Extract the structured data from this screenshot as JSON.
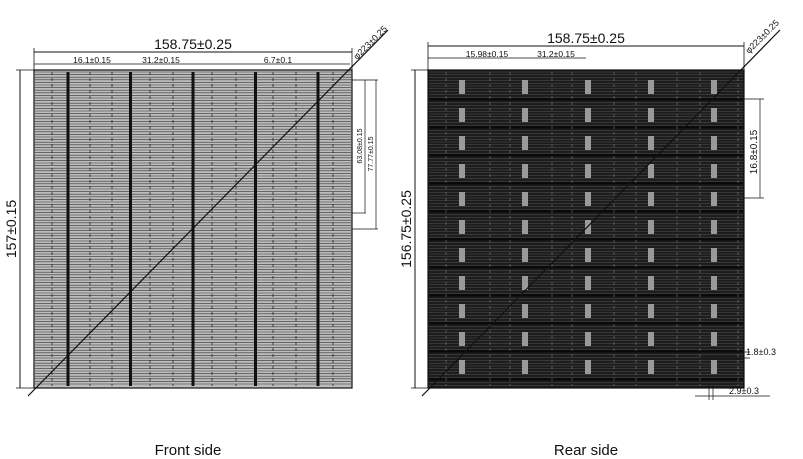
{
  "front": {
    "caption": "Front side",
    "width_dim": "158.75±0.25",
    "height_dim": "157±0.15",
    "diag_dim": "φ223±0.25",
    "seg_a": "16.1±0.15",
    "seg_b": "31.2±0.15",
    "seg_c": "6.7±0.1",
    "side_a": "63.08±0.15",
    "side_b": "77.77±0.15",
    "busbar_count": 5
  },
  "rear": {
    "caption": "Rear side",
    "width_dim": "158.75±0.25",
    "height_dim": "156.75±0.25",
    "diag_dim": "φ223±0.25",
    "seg_a": "15.98±0.15",
    "seg_b": "31.2±0.15",
    "side_a": "16.8±0.15",
    "bottom_a": "1.8±0.3",
    "bottom_b": "2.9±0.3",
    "busbar_count": 5
  },
  "colors": {
    "line": "#111111",
    "front_fill": "#bdbdbd",
    "rear_fill": "#1c1c1c",
    "rear_pad": "#9a9a9a"
  }
}
